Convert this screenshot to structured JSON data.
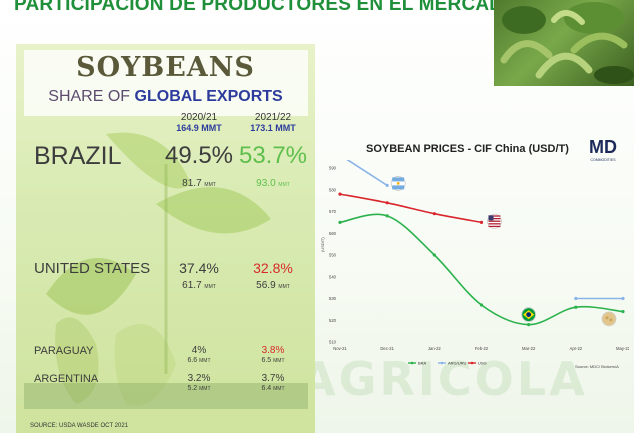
{
  "slide": {
    "title": "PARTICIPACIÓN DE PRODUCTORES EN EL MERCADO",
    "watermark": "AGRICOLA"
  },
  "infographic": {
    "title": "SOYBEANS",
    "subtitle_prefix": "SHARE OF",
    "subtitle_emphasis": "GLOBAL EXPORTS",
    "col1": {
      "year": "2020/21",
      "total": "164.9 MMT"
    },
    "col2": {
      "year": "2021/22",
      "total": "173.1 MMT"
    },
    "rows": [
      {
        "country": "BRAZIL",
        "share_2020": "49.5%",
        "share_2021": "53.7%",
        "vol_2020": "81.7",
        "vol_2021": "93.0",
        "unit": "MMT"
      },
      {
        "country": "UNITED STATES",
        "share_2020": "37.4%",
        "share_2021": "32.8%",
        "vol_2020": "61.7",
        "vol_2021": "56.9",
        "unit": "MMT"
      },
      {
        "country": "PARAGUAY",
        "share_2020": "4%",
        "share_2021": "3.8%",
        "vol_2020": "6.6",
        "vol_2021": "6.5",
        "unit": "MMT"
      },
      {
        "country": "ARGENTINA",
        "share_2020": "3.2%",
        "share_2021": "3.7%",
        "vol_2020": "5.2",
        "vol_2021": "6.4",
        "unit": "MMT"
      }
    ],
    "source": "SOURCE: USDA WASDE OCT 2021"
  },
  "chart_data": {
    "type": "line",
    "title": "SOYBEAN PRICES - CIF China (USD/T)",
    "ylabel": "(USD/T)",
    "ylim": [
      510,
      590
    ],
    "yticks": [
      510,
      520,
      530,
      540,
      550,
      560,
      570,
      580,
      590
    ],
    "categories": [
      "Nov-21",
      "Dec-21",
      "Jan-22",
      "Feb-22",
      "Mar-22",
      "Apr-22",
      "May-22"
    ],
    "series": [
      {
        "name": "BRA",
        "color": "#2bb24c",
        "values": [
          565,
          568,
          550,
          527,
          518,
          526,
          524
        ]
      },
      {
        "name": "ARG/URU",
        "color": "#8ab4e8",
        "values": [
          596,
          582,
          null,
          null,
          null,
          530,
          530
        ]
      },
      {
        "name": "USG",
        "color": "#d9262c",
        "values": [
          578,
          574,
          569,
          565,
          null,
          null,
          null
        ]
      }
    ],
    "grid": false,
    "legend_position": "bottom",
    "source": "Source: MDC/ Brokers/A"
  },
  "chart_logo": {
    "letters": "MD",
    "sub": "COMMODITIES"
  },
  "colors": {
    "title_green": "#1f8f3a",
    "chart_bg": "#ffffff"
  }
}
